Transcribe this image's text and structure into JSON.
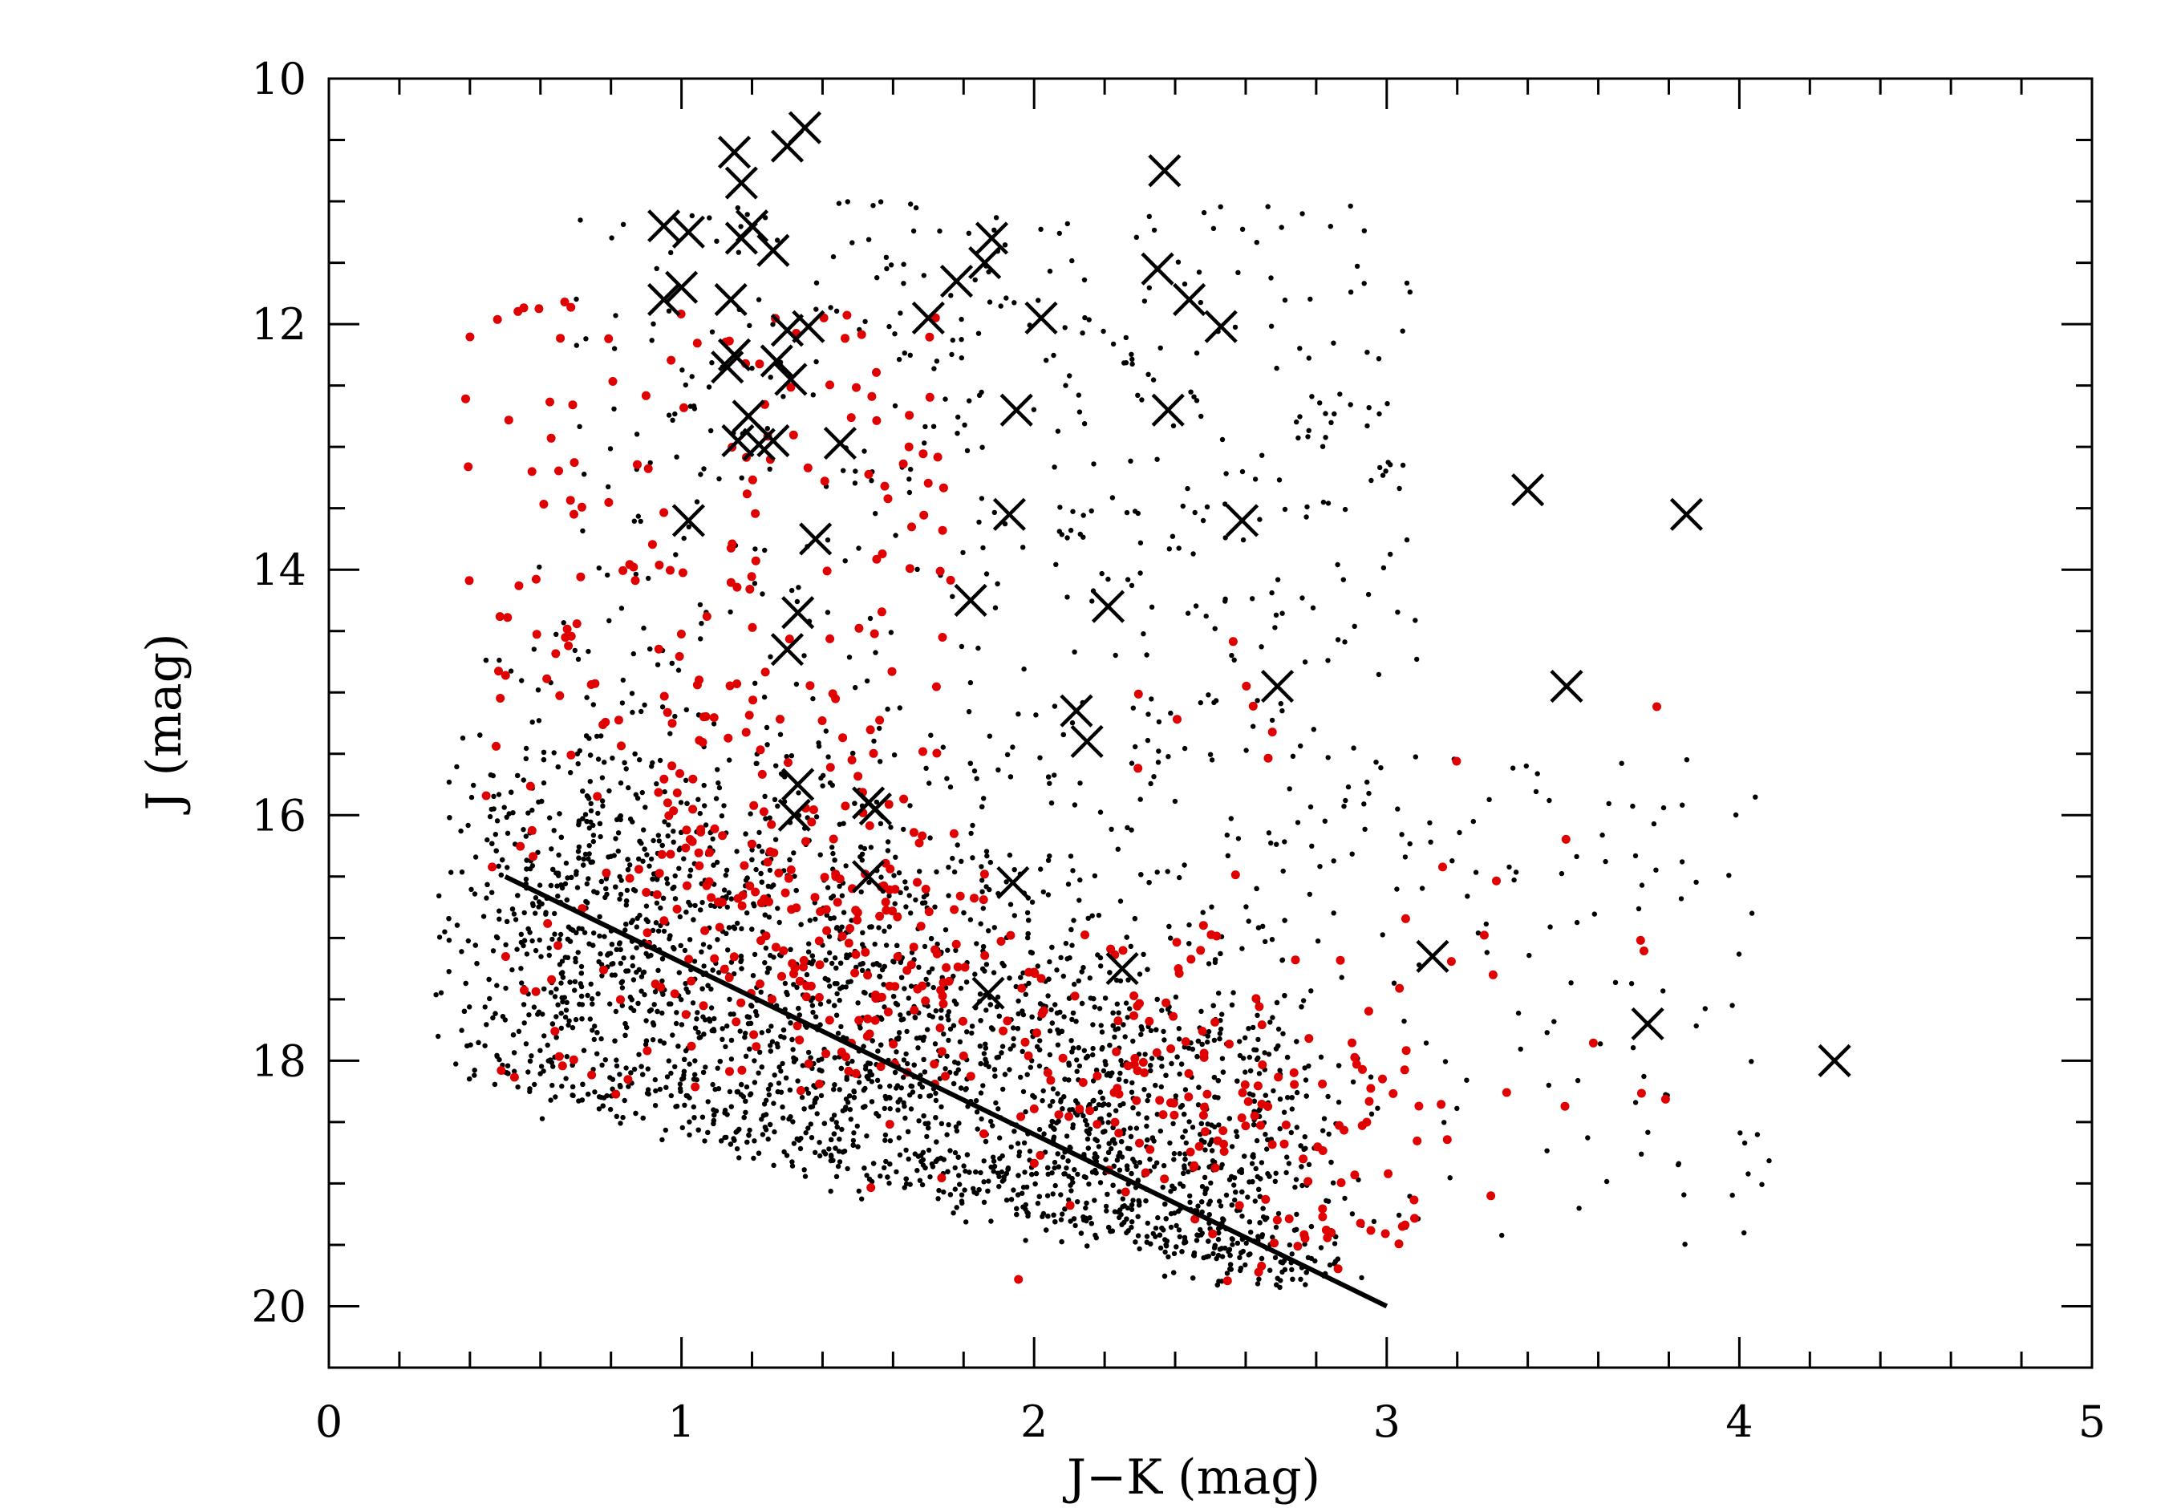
{
  "chart_data": {
    "type": "scatter",
    "title": "",
    "xlabel": "J−K  (mag)",
    "ylabel": "J  (mag)",
    "xlim": [
      0,
      5
    ],
    "ylim": [
      20.5,
      10
    ],
    "y_inverted": true,
    "xticks": [
      0,
      1,
      2,
      3,
      4,
      5
    ],
    "yticks": [
      10,
      12,
      14,
      16,
      18,
      20
    ],
    "xtick_labels": [
      "0",
      "1",
      "2",
      "3",
      "4",
      "5"
    ],
    "ytick_labels": [
      "10",
      "12",
      "14",
      "16",
      "18",
      "20"
    ],
    "grid": false,
    "legend": "none",
    "colors": {
      "black_points": "#000000",
      "red_points": "#e00000",
      "crosses": "#000000",
      "line": "#000000"
    },
    "line": {
      "x": [
        0.5,
        3.0
      ],
      "y": [
        16.5,
        20.0
      ]
    },
    "crosses": [
      [
        1.35,
        10.4
      ],
      [
        1.3,
        10.55
      ],
      [
        1.15,
        10.6
      ],
      [
        1.17,
        10.85
      ],
      [
        2.37,
        10.75
      ],
      [
        0.95,
        11.2
      ],
      [
        1.02,
        11.25
      ],
      [
        1.17,
        11.3
      ],
      [
        1.2,
        11.2
      ],
      [
        1.26,
        11.4
      ],
      [
        1.88,
        11.3
      ],
      [
        1.86,
        11.5
      ],
      [
        1.78,
        11.65
      ],
      [
        2.35,
        11.55
      ],
      [
        2.44,
        11.8
      ],
      [
        0.95,
        11.8
      ],
      [
        1.0,
        11.7
      ],
      [
        1.14,
        11.8
      ],
      [
        1.7,
        11.95
      ],
      [
        2.02,
        11.95
      ],
      [
        2.53,
        12.02
      ],
      [
        1.3,
        12.05
      ],
      [
        1.36,
        12.02
      ],
      [
        1.27,
        12.3
      ],
      [
        1.31,
        12.45
      ],
      [
        1.15,
        12.25
      ],
      [
        1.13,
        12.35
      ],
      [
        1.19,
        12.75
      ],
      [
        1.95,
        12.7
      ],
      [
        2.38,
        12.7
      ],
      [
        1.16,
        12.95
      ],
      [
        1.22,
        12.98
      ],
      [
        1.26,
        12.95
      ],
      [
        1.45,
        12.97
      ],
      [
        1.02,
        13.6
      ],
      [
        1.93,
        13.55
      ],
      [
        2.59,
        13.6
      ],
      [
        3.4,
        13.35
      ],
      [
        3.85,
        13.55
      ],
      [
        1.38,
        13.75
      ],
      [
        1.82,
        14.25
      ],
      [
        2.21,
        14.3
      ],
      [
        1.33,
        14.35
      ],
      [
        1.3,
        14.65
      ],
      [
        2.69,
        14.95
      ],
      [
        3.51,
        14.95
      ],
      [
        2.12,
        15.15
      ],
      [
        2.15,
        15.4
      ],
      [
        1.33,
        15.75
      ],
      [
        1.32,
        16.0
      ],
      [
        1.53,
        15.9
      ],
      [
        1.55,
        15.95
      ],
      [
        1.53,
        16.5
      ],
      [
        1.94,
        16.55
      ],
      [
        3.13,
        17.15
      ],
      [
        2.25,
        17.25
      ],
      [
        1.87,
        17.45
      ],
      [
        3.74,
        17.7
      ],
      [
        4.27,
        18.0
      ]
    ]
  }
}
